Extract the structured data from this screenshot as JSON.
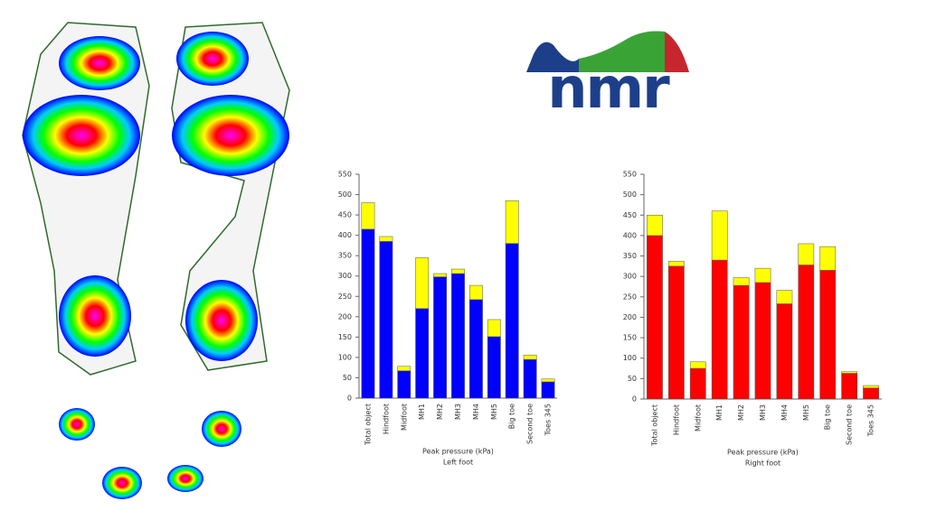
{
  "logo": {
    "text": "nmr"
  },
  "chart_data": [
    {
      "type": "bar",
      "stacked": true,
      "xlabel": "Peak pressure (kPa)",
      "caption": "Left foot",
      "categories": [
        "Total object",
        "Hindfoot",
        "Midfoot",
        "MH1",
        "MH2",
        "MH3",
        "MH4",
        "MH5",
        "Big toe",
        "Second toe",
        "Toes 345"
      ],
      "series": [
        {
          "color": "#0000ff",
          "values": [
            415,
            385,
            67,
            220,
            298,
            306,
            242,
            151,
            380,
            95,
            40
          ]
        },
        {
          "color": "#ffff00",
          "values": [
            65,
            12,
            11,
            125,
            8,
            11,
            35,
            42,
            105,
            11,
            7
          ]
        }
      ],
      "ylim": [
        0,
        550
      ],
      "yticks": [
        0,
        50,
        100,
        150,
        200,
        250,
        300,
        350,
        400,
        450,
        500,
        550
      ]
    },
    {
      "type": "bar",
      "stacked": true,
      "xlabel": "Peak pressure (kPa)",
      "caption": "Right foot",
      "categories": [
        "Total object",
        "Hindfoot",
        "Midfoot",
        "MH1",
        "MH2",
        "MH3",
        "MH4",
        "MH5",
        "Big toe",
        "Second toe",
        "Toes 345"
      ],
      "series": [
        {
          "color": "#ff0000",
          "values": [
            400,
            325,
            75,
            340,
            278,
            285,
            233,
            328,
            315,
            63,
            27
          ]
        },
        {
          "color": "#ffff00",
          "values": [
            50,
            12,
            16,
            120,
            19,
            35,
            33,
            52,
            58,
            4,
            6
          ]
        }
      ],
      "ylim": [
        0,
        550
      ],
      "yticks": [
        0,
        50,
        100,
        150,
        200,
        250,
        300,
        350,
        400,
        450,
        500,
        550
      ]
    }
  ]
}
